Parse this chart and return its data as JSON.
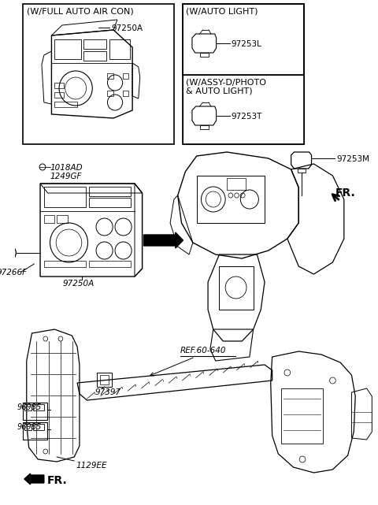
{
  "bg_color": "#ffffff",
  "box1_label": "(W/FULL AUTO AIR CON)",
  "box1_part": "97250A",
  "box2_label1": "(W/AUTO LIGHT)",
  "box2_part1": "97253L",
  "box2_label2": "(W/ASSY-D/PHOTO\n& AUTO LIGHT)",
  "box2_part2": "97253T",
  "part_97253M": "97253M",
  "part_fr1": "FR.",
  "part_1018AD": "1018AD",
  "part_1249GF": "1249GF",
  "part_97266F": "97266F",
  "part_97250A_lower": "97250A",
  "part_ref": "REF.60-640",
  "part_97397": "97397",
  "part_96985a": "96985",
  "part_96985b": "96985",
  "part_1129EE": "1129EE",
  "part_fr2": "FR."
}
